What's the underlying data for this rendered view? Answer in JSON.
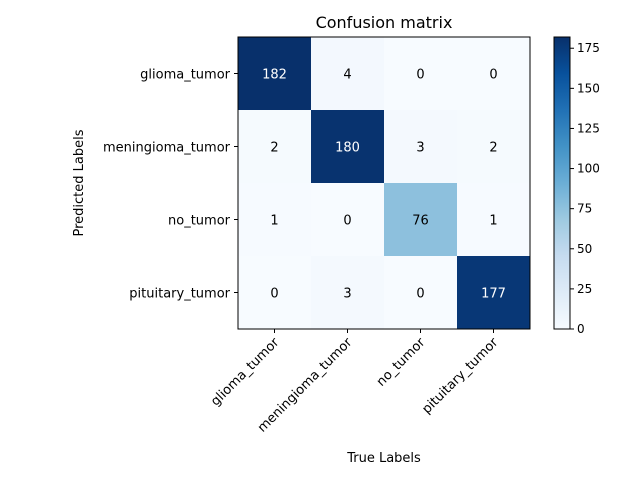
{
  "chart_data": {
    "type": "heatmap",
    "title": "Confusion matrix",
    "xlabel": "True Labels",
    "ylabel": "Predicted Labels",
    "x_categories": [
      "glioma_tumor",
      "meningioma_tumor",
      "no_tumor",
      "pituitary_tumor"
    ],
    "y_categories": [
      "glioma_tumor",
      "meningioma_tumor",
      "no_tumor",
      "pituitary_tumor"
    ],
    "matrix": [
      [
        182,
        4,
        0,
        0
      ],
      [
        2,
        180,
        3,
        2
      ],
      [
        1,
        0,
        76,
        1
      ],
      [
        0,
        3,
        0,
        177
      ]
    ],
    "colormap": "Blues",
    "colorbar": {
      "min": 0,
      "max": 182,
      "ticks": [
        0,
        25,
        50,
        75,
        100,
        125,
        150,
        175
      ]
    }
  }
}
